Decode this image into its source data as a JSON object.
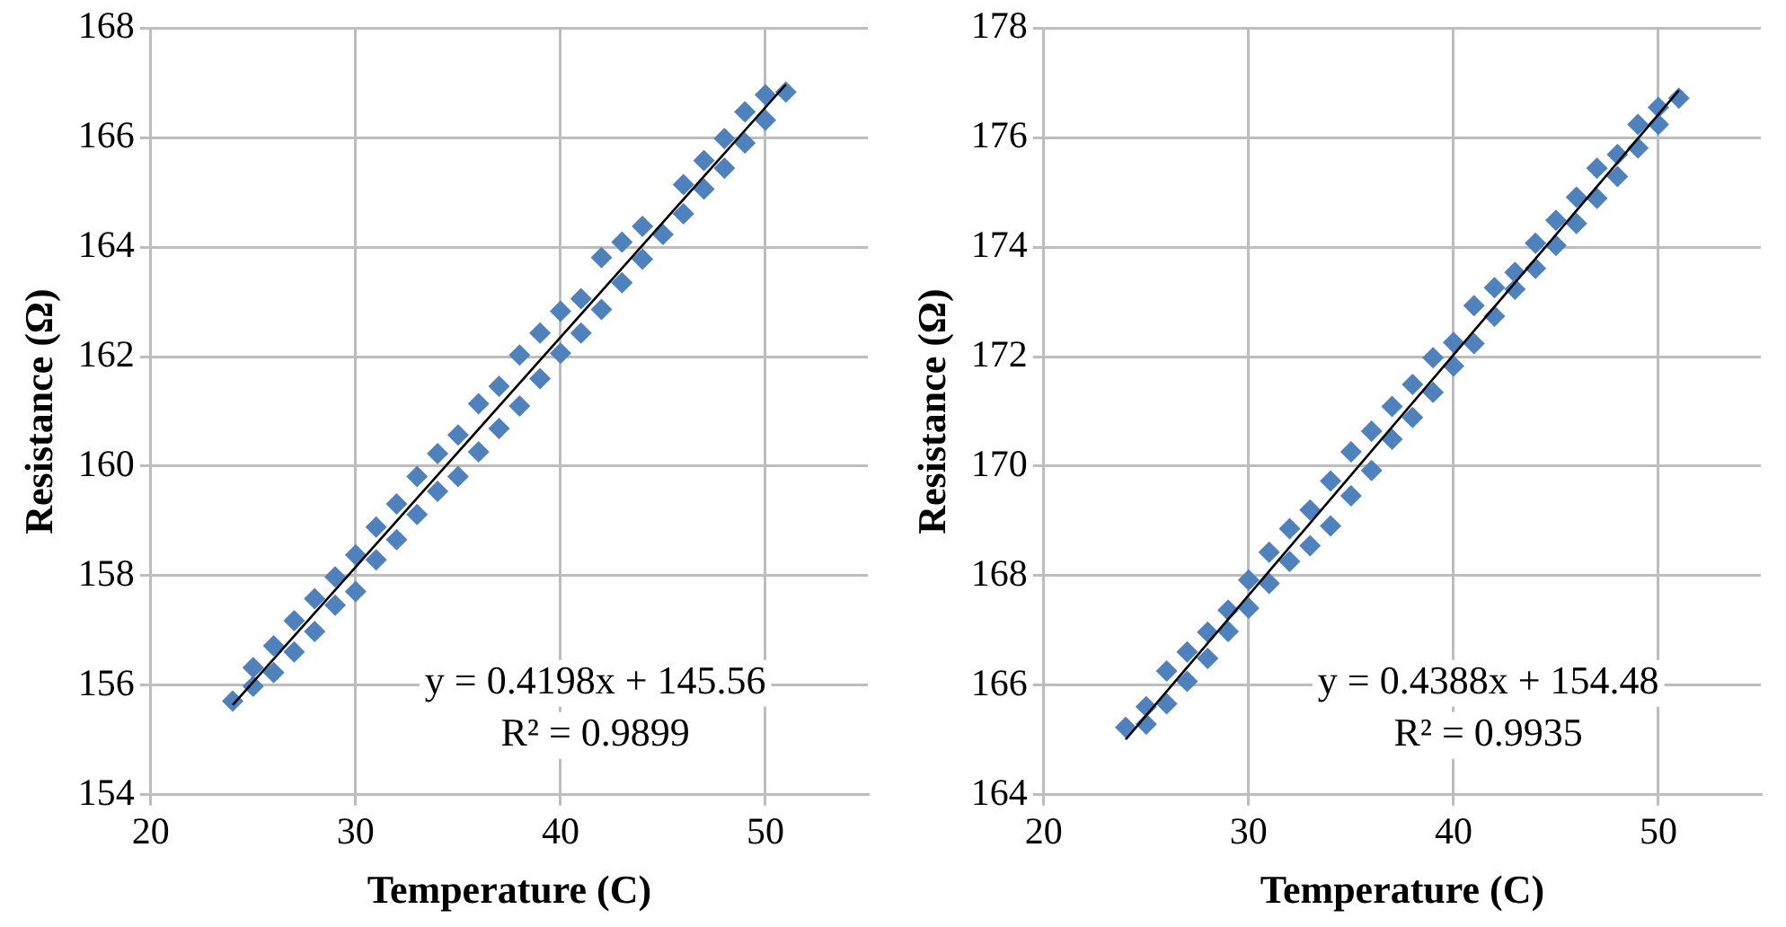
{
  "chart_data": [
    {
      "type": "scatter",
      "xlabel": "Temperature (C)",
      "ylabel": "Resistance (Ω)",
      "xlim": [
        20,
        55
      ],
      "xticks": [
        20,
        30,
        40,
        50
      ],
      "ylim": [
        154,
        168
      ],
      "yticks": [
        154,
        156,
        158,
        160,
        162,
        164,
        166,
        168
      ],
      "grid": true,
      "legend": false,
      "marker": "diamond",
      "annotations": [
        "y = 0.4198x + 145.56",
        "R² = 0.9899"
      ],
      "series": [
        {
          "color": "#4f81bd",
          "x": [
            24,
            25,
            25,
            26,
            26,
            27,
            27,
            28,
            28,
            29,
            29,
            30,
            30,
            31,
            31,
            32,
            32,
            33,
            33,
            34,
            34,
            35,
            35,
            36,
            36,
            37,
            37,
            38,
            38,
            39,
            39,
            40,
            40,
            41,
            41,
            42,
            42,
            43,
            43,
            44,
            44,
            45,
            46,
            46,
            47,
            47,
            48,
            48,
            49,
            49,
            50,
            50,
            51
          ],
          "values": [
            155.71,
            156.32,
            155.98,
            156.72,
            156.23,
            157.18,
            156.61,
            157.58,
            156.98,
            157.98,
            157.46,
            158.38,
            157.71,
            158.89,
            158.29,
            159.31,
            158.66,
            159.81,
            159.12,
            160.23,
            159.54,
            160.57,
            159.81,
            161.14,
            160.26,
            161.46,
            160.69,
            162.03,
            161.1,
            162.43,
            161.6,
            162.83,
            162.06,
            163.06,
            162.43,
            163.81,
            162.86,
            164.09,
            163.35,
            164.38,
            163.78,
            164.23,
            165.14,
            164.61,
            165.58,
            165.06,
            165.98,
            165.44,
            166.47,
            165.9,
            166.78,
            166.32,
            166.83
          ]
        },
        {
          "type": "line",
          "color": "#000000",
          "marker": "none",
          "x": [
            24,
            51
          ],
          "values": [
            155.64,
            166.97
          ]
        }
      ]
    },
    {
      "type": "scatter",
      "xlabel": "Temperature (C)",
      "ylabel": "Resistance (Ω)",
      "xlim": [
        20,
        55
      ],
      "xticks": [
        20,
        30,
        40,
        50
      ],
      "ylim": [
        164,
        178
      ],
      "yticks": [
        164,
        166,
        168,
        170,
        172,
        174,
        176,
        178
      ],
      "grid": true,
      "legend": false,
      "marker": "diamond",
      "annotations": [
        "y = 0.4388x + 154.48",
        "R² = 0.9935"
      ],
      "series": [
        {
          "color": "#4f81bd",
          "x": [
            24,
            25,
            25,
            26,
            26,
            27,
            27,
            28,
            28,
            29,
            29,
            30,
            30,
            31,
            31,
            32,
            32,
            33,
            33,
            34,
            34,
            35,
            35,
            36,
            36,
            37,
            37,
            38,
            38,
            39,
            39,
            40,
            40,
            41,
            41,
            42,
            42,
            43,
            43,
            44,
            44,
            45,
            45,
            46,
            46,
            47,
            47,
            48,
            48,
            49,
            49,
            50,
            50,
            51
          ],
          "values": [
            165.23,
            165.29,
            165.61,
            165.66,
            166.26,
            166.07,
            166.61,
            166.49,
            166.97,
            166.98,
            167.37,
            167.41,
            167.92,
            167.86,
            168.43,
            168.26,
            168.86,
            168.55,
            169.2,
            168.91,
            169.73,
            169.46,
            170.26,
            169.92,
            170.64,
            170.49,
            171.09,
            170.89,
            171.49,
            171.35,
            171.98,
            171.83,
            172.26,
            172.24,
            172.93,
            172.74,
            173.26,
            173.23,
            173.54,
            173.61,
            174.07,
            174.03,
            174.49,
            174.43,
            174.91,
            174.89,
            175.44,
            175.29,
            175.69,
            175.81,
            176.24,
            176.24,
            176.55,
            176.72
          ]
        },
        {
          "type": "line",
          "color": "#000000",
          "marker": "none",
          "x": [
            24,
            51
          ],
          "values": [
            165.01,
            176.86
          ]
        }
      ]
    }
  ]
}
